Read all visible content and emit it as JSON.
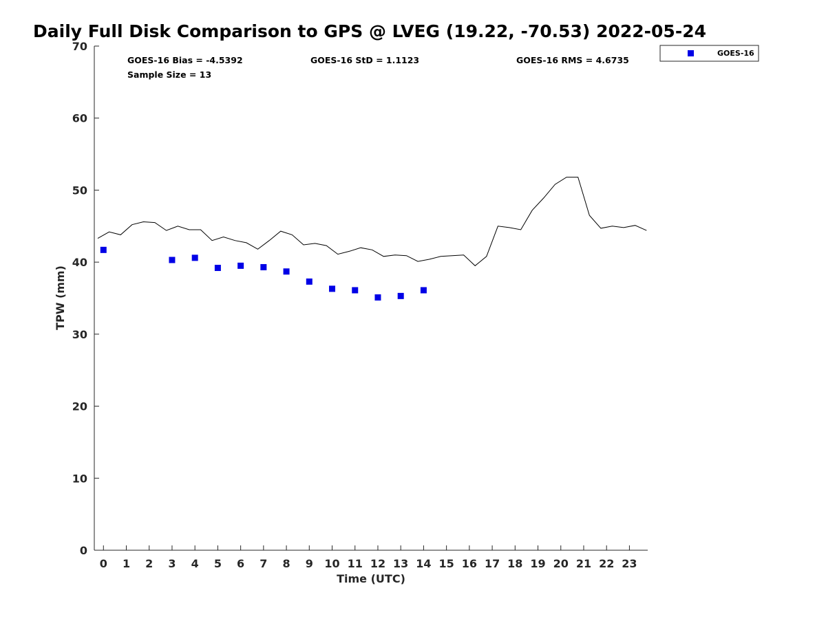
{
  "chart_data": {
    "type": "scatter",
    "title": "Daily Full Disk Comparison to GPS @ LVEG (19.22, -70.53) 2022-05-24",
    "xlabel": "Time (UTC)",
    "ylabel": "TPW (mm)",
    "xlim": [
      -0.4,
      23.8
    ],
    "ylim": [
      0,
      70
    ],
    "x_ticks": [
      "0",
      "1",
      "2",
      "3",
      "4",
      "5",
      "6",
      "7",
      "8",
      "9",
      "10",
      "11",
      "12",
      "13",
      "14",
      "15",
      "16",
      "17",
      "18",
      "19",
      "20",
      "21",
      "22",
      "23"
    ],
    "y_ticks": [
      "0",
      "10",
      "20",
      "30",
      "40",
      "50",
      "60",
      "70"
    ],
    "grid": false,
    "legend_position": "outside-top-right",
    "stats": {
      "bias": "GOES-16 Bias = -4.5392",
      "std": "GOES-16 StD = 1.1123",
      "rms": "GOES-16 RMS = 4.6735",
      "sample_size": "Sample Size = 13"
    },
    "gps_line": {
      "color": "#000000",
      "x": [
        -0.25,
        0.25,
        0.75,
        1.25,
        1.75,
        2.25,
        2.75,
        3.25,
        3.75,
        4.25,
        4.75,
        5.25,
        5.75,
        6.25,
        6.75,
        7.25,
        7.75,
        8.25,
        8.75,
        9.25,
        9.75,
        10.25,
        10.75,
        11.25,
        11.75,
        12.25,
        12.75,
        13.25,
        13.75,
        14.25,
        14.75,
        15.25,
        15.75,
        16.25,
        16.75,
        17.25,
        17.75,
        18.25,
        18.75,
        19.25,
        19.75,
        20.25,
        20.75,
        21.25,
        21.75,
        22.25,
        22.75,
        23.25,
        23.75
      ],
      "y": [
        43.3,
        44.2,
        43.8,
        45.2,
        45.6,
        45.5,
        44.4,
        45.0,
        44.5,
        44.5,
        43.0,
        43.5,
        43.0,
        42.7,
        41.8,
        43.0,
        44.3,
        43.8,
        42.4,
        42.6,
        42.3,
        41.1,
        41.5,
        42.0,
        41.7,
        40.8,
        41.0,
        40.9,
        40.1,
        40.4,
        40.8,
        40.9,
        41.0,
        39.5,
        40.8,
        45.0,
        44.8,
        44.5,
        47.2,
        48.9,
        50.8,
        51.8,
        51.8,
        46.5,
        44.7,
        45.0,
        44.8,
        45.1,
        44.4
      ]
    },
    "series": [
      {
        "name": "GOES-16",
        "color": "#0000e6",
        "marker": "square",
        "x": [
          0,
          3,
          4,
          5,
          6,
          7,
          8,
          9,
          10,
          11,
          12,
          13,
          14
        ],
        "y": [
          41.7,
          40.3,
          40.6,
          39.2,
          39.5,
          39.3,
          38.7,
          37.3,
          36.3,
          36.1,
          35.1,
          35.3,
          36.1
        ]
      }
    ]
  }
}
